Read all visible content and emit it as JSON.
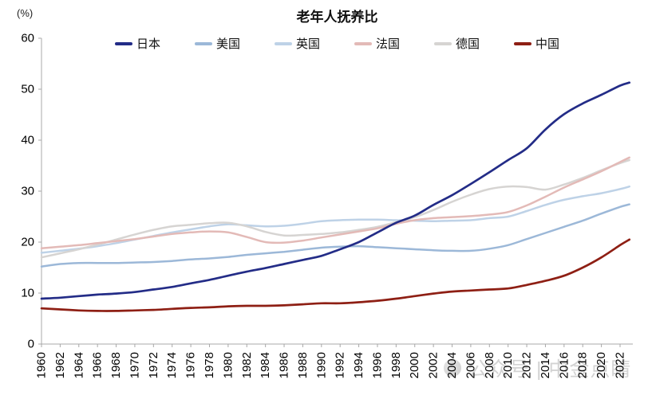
{
  "chart": {
    "title": "老年人抚养比",
    "unit": "(%)",
    "watermark_text": "公众号 | 中金点睛"
  },
  "chart_data": {
    "type": "line",
    "title": "老年人抚养比",
    "unit_label": "(%)",
    "grid": false,
    "legend_position": "top",
    "axis_color": "#a8a8a8",
    "tick_label_color": "#000000",
    "ylim": [
      0,
      60
    ],
    "y_ticks": [
      0,
      10,
      20,
      30,
      40,
      50,
      60
    ],
    "x_tick_years": [
      1960,
      1962,
      1964,
      1966,
      1968,
      1970,
      1972,
      1974,
      1976,
      1978,
      1980,
      1982,
      1984,
      1986,
      1988,
      1990,
      1992,
      1994,
      1996,
      1998,
      2000,
      2002,
      2004,
      2006,
      2008,
      2010,
      2012,
      2014,
      2016,
      2018,
      2020,
      2022
    ],
    "x": [
      1960,
      1962,
      1964,
      1966,
      1968,
      1970,
      1972,
      1974,
      1976,
      1978,
      1980,
      1982,
      1984,
      1986,
      1988,
      1990,
      1992,
      1994,
      1996,
      1998,
      2000,
      2002,
      2004,
      2006,
      2008,
      2010,
      2012,
      2014,
      2016,
      2018,
      2020,
      2022,
      2023
    ],
    "series": [
      {
        "name": "日本",
        "color": "#232c87",
        "width": 2.7,
        "values": [
          8.9,
          9.1,
          9.4,
          9.7,
          9.9,
          10.2,
          10.7,
          11.2,
          11.9,
          12.6,
          13.4,
          14.2,
          14.9,
          15.7,
          16.5,
          17.3,
          18.6,
          20.0,
          21.9,
          23.8,
          25.2,
          27.3,
          29.2,
          31.4,
          33.7,
          36.1,
          38.4,
          42.1,
          45.1,
          47.2,
          48.9,
          50.7,
          51.3
        ]
      },
      {
        "name": "美国",
        "color": "#9cb8d8",
        "width": 2.5,
        "values": [
          15.2,
          15.7,
          15.9,
          15.9,
          15.9,
          16.0,
          16.1,
          16.3,
          16.6,
          16.8,
          17.1,
          17.5,
          17.8,
          18.1,
          18.5,
          18.9,
          19.1,
          19.2,
          19.0,
          18.8,
          18.6,
          18.4,
          18.3,
          18.3,
          18.7,
          19.4,
          20.6,
          21.8,
          23.0,
          24.2,
          25.6,
          26.9,
          27.4
        ]
      },
      {
        "name": "英国",
        "color": "#bed2e7",
        "width": 2.5,
        "values": [
          17.9,
          18.3,
          18.7,
          19.2,
          19.8,
          20.5,
          21.2,
          21.9,
          22.5,
          23.1,
          23.5,
          23.3,
          23.1,
          23.2,
          23.6,
          24.1,
          24.3,
          24.4,
          24.4,
          24.3,
          24.2,
          24.1,
          24.2,
          24.3,
          24.7,
          25.0,
          26.1,
          27.3,
          28.3,
          29.0,
          29.6,
          30.4,
          30.9
        ]
      },
      {
        "name": "法国",
        "color": "#e3bab7",
        "width": 2.5,
        "values": [
          18.8,
          19.1,
          19.4,
          19.8,
          20.2,
          20.6,
          21.1,
          21.6,
          21.9,
          22.1,
          21.9,
          21.0,
          20.0,
          19.9,
          20.3,
          20.9,
          21.5,
          22.1,
          22.7,
          23.6,
          24.3,
          24.7,
          24.9,
          25.1,
          25.4,
          25.9,
          27.2,
          28.9,
          30.7,
          32.3,
          33.9,
          35.7,
          36.6
        ]
      },
      {
        "name": "德国",
        "color": "#d6d4d2",
        "width": 2.5,
        "values": [
          17.0,
          17.8,
          18.6,
          19.5,
          20.5,
          21.5,
          22.4,
          23.1,
          23.4,
          23.7,
          23.8,
          23.1,
          22.0,
          21.3,
          21.4,
          21.6,
          21.9,
          22.4,
          23.0,
          23.9,
          24.9,
          26.3,
          27.9,
          29.3,
          30.4,
          30.9,
          30.8,
          30.3,
          31.3,
          32.6,
          34.1,
          35.5,
          36.1
        ]
      },
      {
        "name": "中国",
        "color": "#8e1f14",
        "width": 2.7,
        "values": [
          7.0,
          6.8,
          6.6,
          6.5,
          6.5,
          6.6,
          6.7,
          6.9,
          7.1,
          7.2,
          7.4,
          7.5,
          7.5,
          7.6,
          7.8,
          8.0,
          8.0,
          8.2,
          8.5,
          8.9,
          9.4,
          9.9,
          10.3,
          10.5,
          10.7,
          10.9,
          11.6,
          12.4,
          13.4,
          15.0,
          17.0,
          19.4,
          20.5
        ]
      }
    ],
    "draw_order": [
      1,
      2,
      4,
      3,
      5,
      0
    ]
  }
}
